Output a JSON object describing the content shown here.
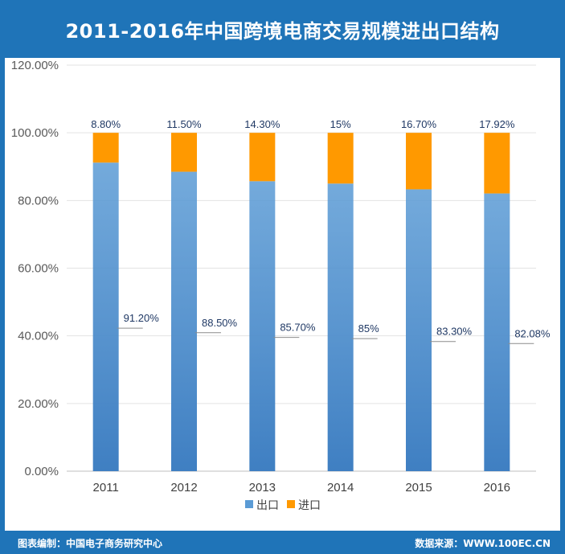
{
  "header": {
    "title": "2011-2016年中国跨境电商交易规模进出口结构"
  },
  "footer": {
    "left": "图表编制：中国电子商务研究中心",
    "right": "数据来源：WWW.100EC.CN"
  },
  "colors": {
    "brand": "#1f74b8",
    "export": "#5b9bd5",
    "import": "#ff9900"
  },
  "chart_data": {
    "type": "bar",
    "stacked": true,
    "categories": [
      "2011",
      "2012",
      "2013",
      "2014",
      "2015",
      "2016"
    ],
    "series": [
      {
        "name": "出口",
        "values": [
          91.2,
          88.5,
          85.7,
          85,
          83.3,
          82.08
        ],
        "labels": [
          "91.20%",
          "88.50%",
          "85.70%",
          "85%",
          "83.30%",
          "82.08%"
        ]
      },
      {
        "name": "进口",
        "values": [
          8.8,
          11.5,
          14.3,
          15,
          16.7,
          17.92
        ],
        "labels": [
          "8.80%",
          "11.50%",
          "14.30%",
          "15%",
          "16.70%",
          "17.92%"
        ]
      }
    ],
    "yticks": [
      "0.00%",
      "20.00%",
      "40.00%",
      "60.00%",
      "80.00%",
      "100.00%",
      "120.00%"
    ],
    "ylim": [
      0,
      120
    ],
    "grid": true,
    "legend": "bottom"
  }
}
